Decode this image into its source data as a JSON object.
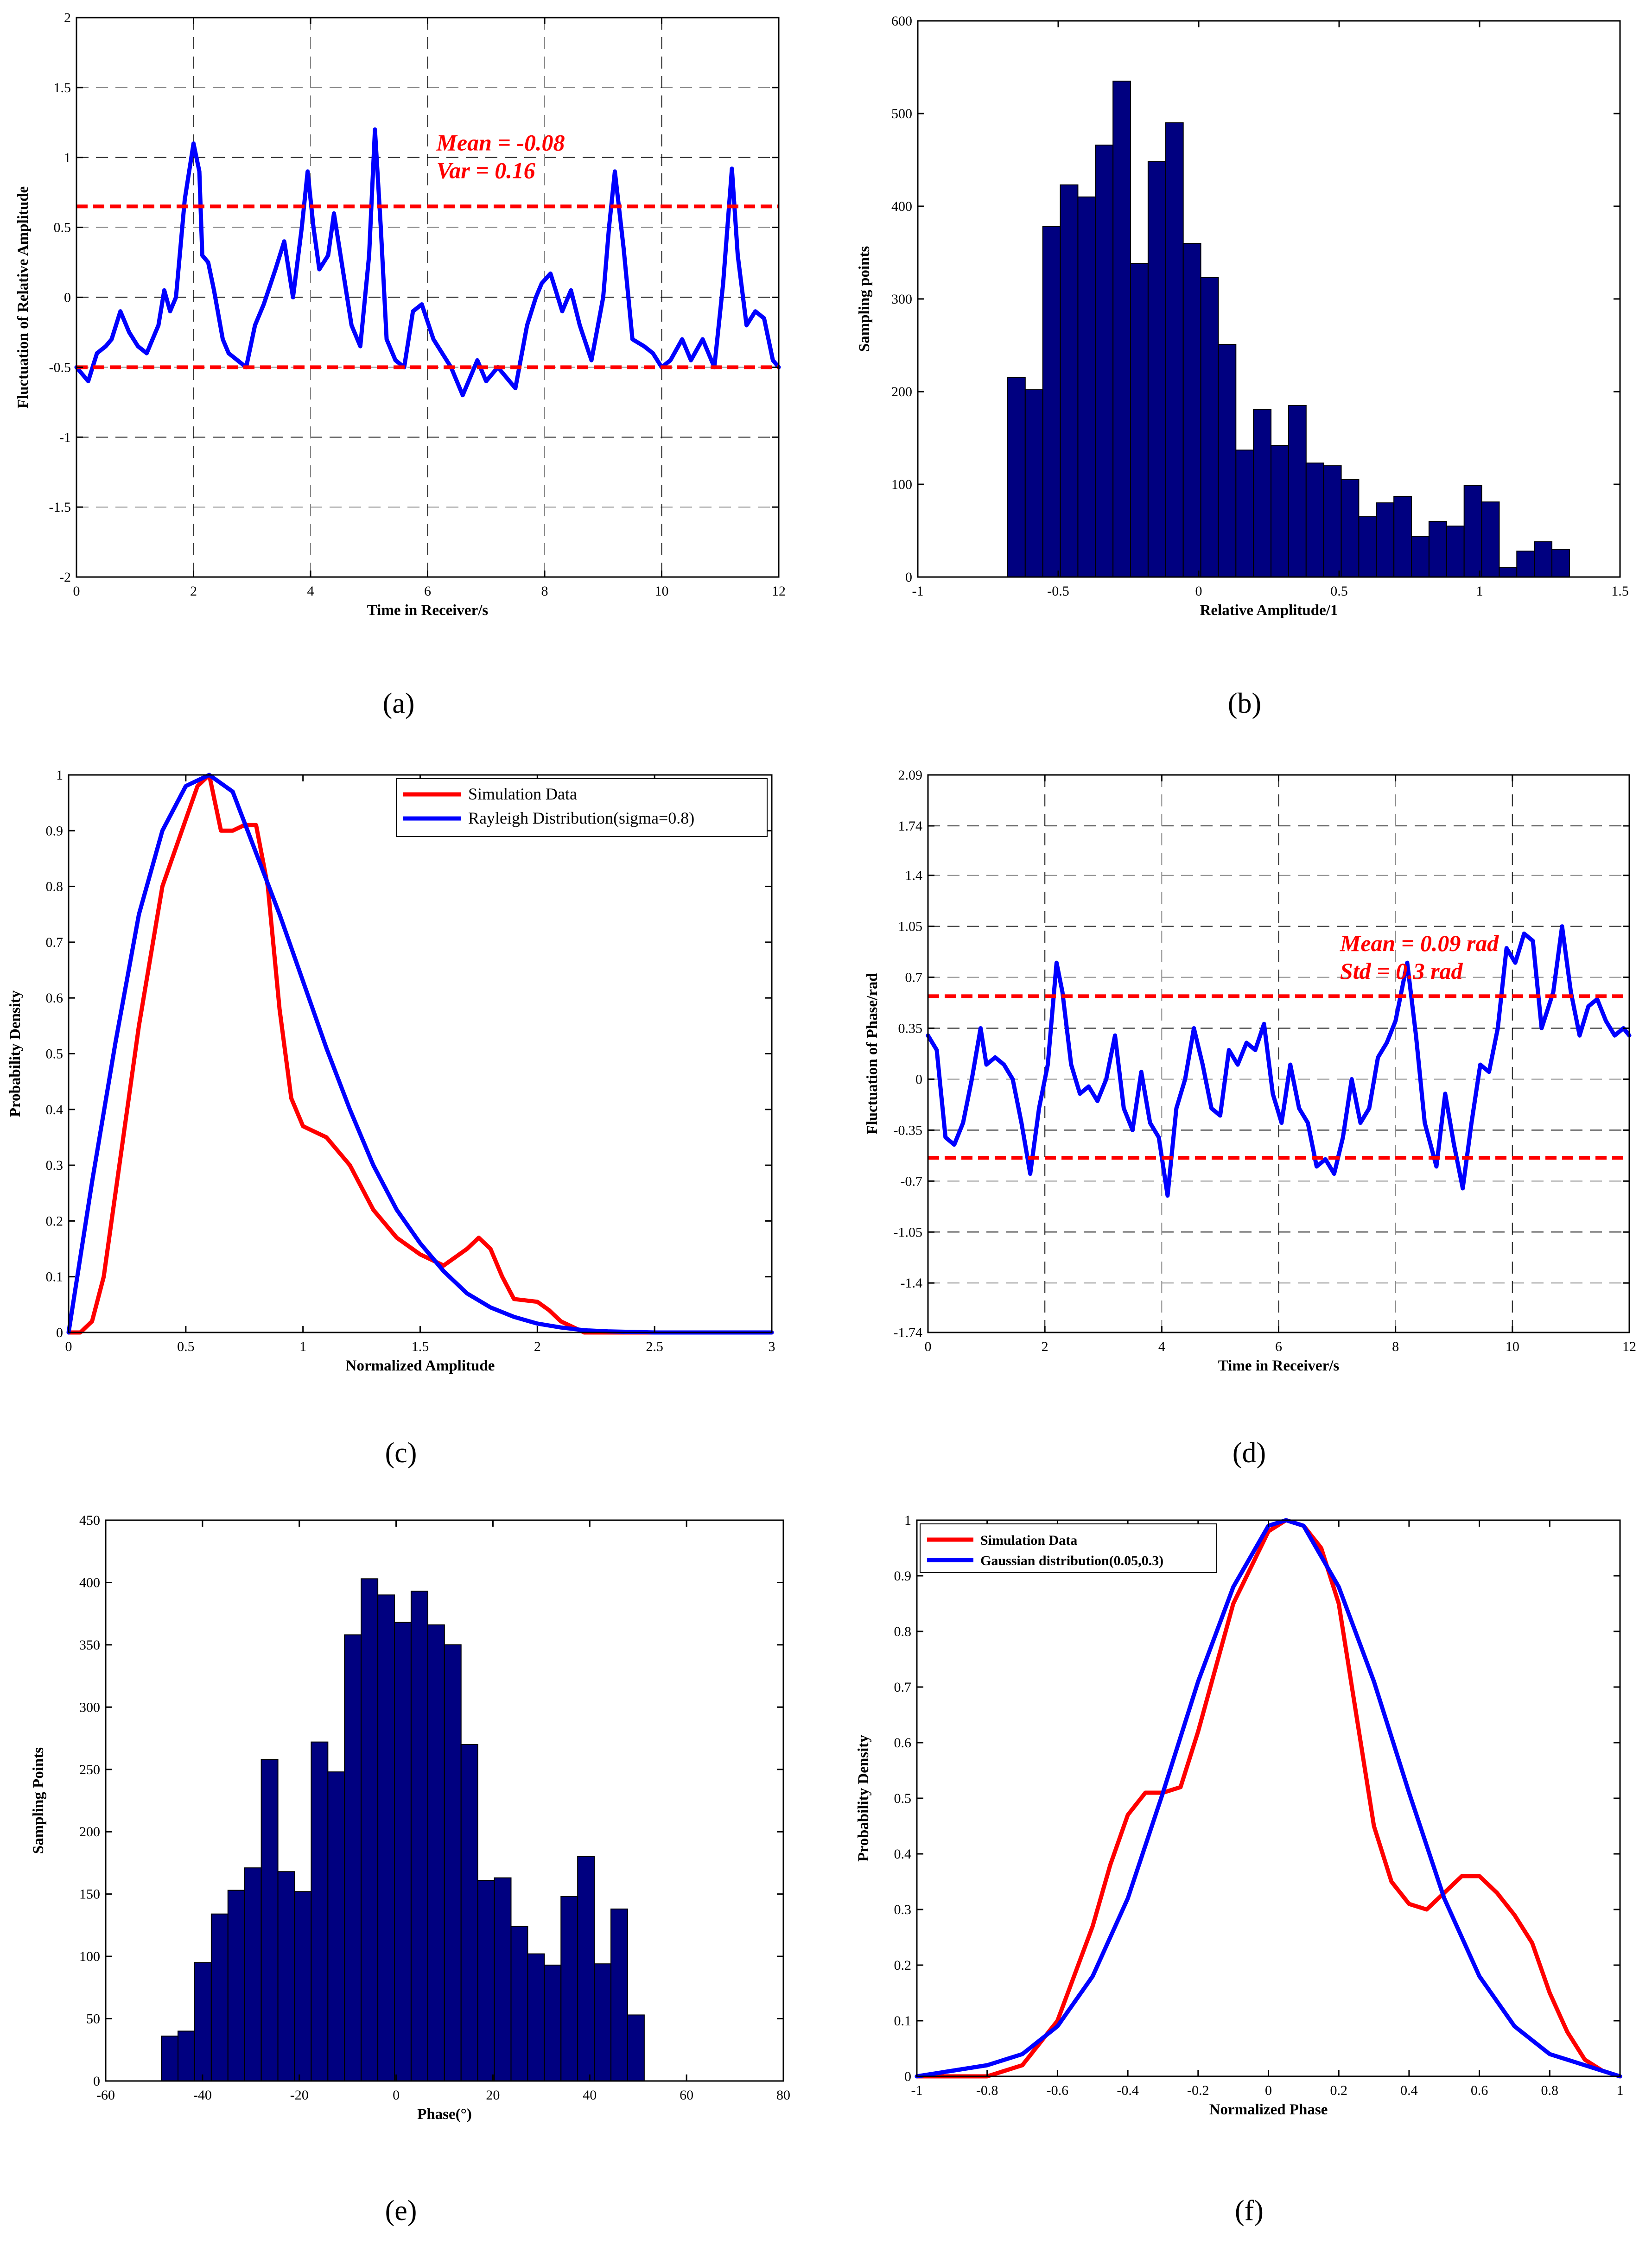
{
  "panel_labels": [
    "(a)",
    "(b)",
    "(c)",
    "(d)",
    "(e)",
    "(f)"
  ],
  "colors": {
    "blue_line": "#0000ff",
    "red_line": "#ff0000",
    "bar_fill": "#000080",
    "bar_edge": "#000000"
  },
  "chart_data": [
    {
      "id": "a",
      "type": "line",
      "title": "",
      "xlabel": "Time in Receiver/s",
      "ylabel": "Fluctuation of Relative Amplitude",
      "xlim": [
        0,
        12
      ],
      "ylim": [
        -2,
        2
      ],
      "xticks": [
        0,
        2,
        4,
        6,
        8,
        10,
        12
      ],
      "yticks": [
        -2,
        -1.5,
        -1,
        -0.5,
        0,
        0.5,
        1,
        1.5,
        2
      ],
      "ytick_labels": [
        "-2",
        "-1.5",
        "-1",
        "-0.5",
        "0",
        "0.5",
        "1",
        "1.5",
        "2"
      ],
      "hlines": [
        0.65,
        -0.5
      ],
      "annotations": [
        "Mean = -0.08",
        "Var = 0.16"
      ],
      "series": [
        {
          "name": "amplitude",
          "color": "#0000ff",
          "x": [
            0,
            0.2,
            0.35,
            0.5,
            0.6,
            0.75,
            0.9,
            1.05,
            1.2,
            1.3,
            1.4,
            1.5,
            1.6,
            1.7,
            1.85,
            2.0,
            2.1,
            2.15,
            2.25,
            2.35,
            2.5,
            2.6,
            2.75,
            2.9,
            3.05,
            3.2,
            3.4,
            3.55,
            3.7,
            3.85,
            3.95,
            4.05,
            4.15,
            4.3,
            4.4,
            4.55,
            4.7,
            4.85,
            5.0,
            5.1,
            5.2,
            5.3,
            5.45,
            5.6,
            5.75,
            5.9,
            6.1,
            6.4,
            6.6,
            6.85,
            7.0,
            7.2,
            7.5,
            7.7,
            7.85,
            7.95,
            8.1,
            8.3,
            8.45,
            8.6,
            8.8,
            9.0,
            9.1,
            9.2,
            9.35,
            9.5,
            9.7,
            9.85,
            10.0,
            10.15,
            10.35,
            10.5,
            10.7,
            10.9,
            11.05,
            11.2,
            11.3,
            11.45,
            11.6,
            11.75,
            11.9,
            12.0
          ],
          "y": [
            -0.5,
            -0.6,
            -0.4,
            -0.35,
            -0.3,
            -0.1,
            -0.25,
            -0.35,
            -0.4,
            -0.3,
            -0.2,
            0.05,
            -0.1,
            0.0,
            0.7,
            1.1,
            0.9,
            0.3,
            0.25,
            0.05,
            -0.3,
            -0.4,
            -0.45,
            -0.5,
            -0.2,
            -0.05,
            0.2,
            0.4,
            0.0,
            0.5,
            0.9,
            0.5,
            0.2,
            0.3,
            0.6,
            0.2,
            -0.2,
            -0.35,
            0.3,
            1.2,
            0.5,
            -0.3,
            -0.45,
            -0.5,
            -0.1,
            -0.05,
            -0.3,
            -0.5,
            -0.7,
            -0.45,
            -0.6,
            -0.5,
            -0.65,
            -0.2,
            0.0,
            0.1,
            0.17,
            -0.1,
            0.05,
            -0.2,
            -0.45,
            0.0,
            0.5,
            0.9,
            0.35,
            -0.3,
            -0.35,
            -0.4,
            -0.5,
            -0.45,
            -0.3,
            -0.45,
            -0.3,
            -0.5,
            0.1,
            0.92,
            0.3,
            -0.2,
            -0.1,
            -0.15,
            -0.45,
            -0.5
          ]
        }
      ]
    },
    {
      "id": "b",
      "type": "bar",
      "title": "",
      "xlabel": "Relative Amplitude/1",
      "ylabel": "Sampling points",
      "xlim": [
        -1,
        1.5
      ],
      "ylim": [
        0,
        600
      ],
      "xticks": [
        -1,
        -0.5,
        0,
        0.5,
        1,
        1.5
      ],
      "xtick_labels": [
        "-1",
        "-0.5",
        "0",
        "0.5",
        "1",
        "1.5"
      ],
      "yticks": [
        0,
        100,
        200,
        300,
        400,
        500,
        600
      ],
      "bin_start": -0.68,
      "bin_width": 0.0625,
      "values": [
        215,
        202,
        378,
        423,
        410,
        466,
        535,
        338,
        448,
        490,
        360,
        323,
        251,
        137,
        181,
        142,
        185,
        123,
        120,
        105,
        65,
        80,
        87,
        44,
        60,
        55,
        99,
        81,
        10,
        28,
        38,
        30
      ]
    },
    {
      "id": "c",
      "type": "line",
      "title": "",
      "xlabel": "Normalized Amplitude",
      "ylabel": "Probability Density",
      "xlim": [
        0,
        3
      ],
      "ylim": [
        0,
        1
      ],
      "xticks": [
        0,
        0.5,
        1,
        1.5,
        2,
        2.5,
        3
      ],
      "xtick_labels": [
        "0",
        "0.5",
        "1",
        "1.5",
        "2",
        "2.5",
        "3"
      ],
      "yticks": [
        0,
        0.1,
        0.2,
        0.3,
        0.4,
        0.5,
        0.6,
        0.7,
        0.8,
        0.9,
        1
      ],
      "ytick_labels": [
        "0",
        "0.1",
        "0.2",
        "0.3",
        "0.4",
        "0.5",
        "0.6",
        "0.7",
        "0.8",
        "0.9",
        "1"
      ],
      "legend": [
        "Simulation Data",
        "Rayleigh Distribution(sigma=0.8)"
      ],
      "series": [
        {
          "name": "Simulation Data",
          "color": "#ff0000",
          "x": [
            0,
            0.05,
            0.1,
            0.15,
            0.2,
            0.3,
            0.4,
            0.5,
            0.55,
            0.6,
            0.65,
            0.7,
            0.75,
            0.8,
            0.85,
            0.9,
            0.95,
            1.0,
            1.05,
            1.1,
            1.2,
            1.3,
            1.4,
            1.5,
            1.6,
            1.7,
            1.75,
            1.8,
            1.85,
            1.9,
            2.0,
            2.05,
            2.1,
            2.2,
            2.5,
            3.0
          ],
          "y": [
            0.0,
            0.0,
            0.02,
            0.1,
            0.25,
            0.55,
            0.8,
            0.92,
            0.98,
            1.0,
            0.9,
            0.9,
            0.91,
            0.91,
            0.8,
            0.58,
            0.42,
            0.37,
            0.36,
            0.35,
            0.3,
            0.22,
            0.17,
            0.14,
            0.12,
            0.15,
            0.17,
            0.15,
            0.1,
            0.06,
            0.055,
            0.04,
            0.02,
            0.0,
            0.0,
            0.0
          ]
        },
        {
          "name": "Rayleigh Distribution(sigma=0.8)",
          "color": "#0000ff",
          "x": [
            0,
            0.1,
            0.2,
            0.3,
            0.4,
            0.5,
            0.6,
            0.7,
            0.8,
            0.9,
            1.0,
            1.1,
            1.2,
            1.3,
            1.4,
            1.5,
            1.6,
            1.7,
            1.8,
            1.9,
            2.0,
            2.1,
            2.2,
            2.3,
            2.5,
            3.0
          ],
          "y": [
            0.0,
            0.27,
            0.52,
            0.75,
            0.9,
            0.98,
            1.0,
            0.97,
            0.86,
            0.75,
            0.63,
            0.51,
            0.4,
            0.3,
            0.22,
            0.16,
            0.11,
            0.07,
            0.045,
            0.028,
            0.016,
            0.009,
            0.004,
            0.002,
            0.0,
            0.0
          ]
        }
      ]
    },
    {
      "id": "d",
      "type": "line",
      "title": "",
      "xlabel": "Time in Receiver/s",
      "ylabel": "Fluctuation of Phase/rad",
      "xlim": [
        0,
        12
      ],
      "ylim": [
        -1.74,
        2.09
      ],
      "xticks": [
        0,
        2,
        4,
        6,
        8,
        10,
        12
      ],
      "yticks": [
        -1.74,
        -1.4,
        -1.05,
        -0.7,
        -0.35,
        0,
        0.35,
        0.7,
        1.05,
        1.4,
        1.74,
        2.09
      ],
      "ytick_labels": [
        "-1.74",
        "-1.4",
        "-1.05",
        "-0.7",
        "-0.35",
        "0",
        "0.35",
        "0.7",
        "1.05",
        "1.4",
        "1.74",
        "2.09"
      ],
      "hlines": [
        0.57,
        -0.54
      ],
      "annotations": [
        "Mean = 0.09 rad",
        "Std = 0.3 rad"
      ],
      "series": [
        {
          "name": "phase",
          "color": "#0000ff",
          "x": [
            0,
            0.15,
            0.3,
            0.45,
            0.6,
            0.75,
            0.9,
            1.0,
            1.15,
            1.3,
            1.45,
            1.6,
            1.75,
            1.9,
            2.05,
            2.2,
            2.3,
            2.45,
            2.6,
            2.75,
            2.9,
            3.05,
            3.2,
            3.35,
            3.5,
            3.65,
            3.8,
            3.95,
            4.1,
            4.25,
            4.4,
            4.55,
            4.7,
            4.85,
            5.0,
            5.15,
            5.3,
            5.45,
            5.6,
            5.75,
            5.9,
            6.05,
            6.2,
            6.35,
            6.5,
            6.65,
            6.8,
            6.95,
            7.1,
            7.25,
            7.4,
            7.55,
            7.7,
            7.85,
            8.0,
            8.2,
            8.35,
            8.5,
            8.7,
            8.85,
            9.0,
            9.15,
            9.3,
            9.45,
            9.6,
            9.75,
            9.9,
            10.05,
            10.2,
            10.35,
            10.5,
            10.7,
            10.85,
            11.0,
            11.15,
            11.3,
            11.45,
            11.6,
            11.75,
            11.9,
            12.0
          ],
          "y": [
            0.3,
            0.2,
            -0.4,
            -0.45,
            -0.3,
            0.0,
            0.35,
            0.1,
            0.15,
            0.1,
            0.0,
            -0.3,
            -0.65,
            -0.2,
            0.1,
            0.8,
            0.6,
            0.1,
            -0.1,
            -0.05,
            -0.15,
            0.0,
            0.3,
            -0.2,
            -0.35,
            0.05,
            -0.3,
            -0.4,
            -0.8,
            -0.2,
            0.0,
            0.35,
            0.1,
            -0.2,
            -0.25,
            0.2,
            0.1,
            0.25,
            0.2,
            0.38,
            -0.1,
            -0.3,
            0.1,
            -0.2,
            -0.3,
            -0.6,
            -0.55,
            -0.65,
            -0.4,
            0.0,
            -0.3,
            -0.2,
            0.15,
            0.25,
            0.4,
            0.8,
            0.3,
            -0.3,
            -0.6,
            -0.1,
            -0.45,
            -0.75,
            -0.3,
            0.1,
            0.05,
            0.35,
            0.9,
            0.8,
            1.0,
            0.95,
            0.35,
            0.6,
            1.05,
            0.6,
            0.3,
            0.5,
            0.55,
            0.4,
            0.3,
            0.35,
            0.3
          ]
        }
      ]
    },
    {
      "id": "e",
      "type": "bar",
      "title": "",
      "xlabel": "Phase(°)",
      "ylabel": "Sampling Points",
      "xlim": [
        -60,
        80
      ],
      "ylim": [
        0,
        450
      ],
      "xticks": [
        -60,
        -40,
        -20,
        0,
        20,
        40,
        60,
        80
      ],
      "yticks": [
        0,
        50,
        100,
        150,
        200,
        250,
        300,
        350,
        400,
        450
      ],
      "bin_start": -48.5,
      "bin_width": 3.44,
      "values": [
        36,
        40,
        95,
        134,
        153,
        171,
        258,
        168,
        152,
        272,
        248,
        358,
        403,
        390,
        368,
        393,
        366,
        350,
        270,
        161,
        163,
        124,
        102,
        93,
        148,
        180,
        94,
        138,
        53
      ]
    },
    {
      "id": "f",
      "type": "line",
      "title": "",
      "xlabel": "Normalized Phase",
      "ylabel": "Probability Density",
      "xlim": [
        -1,
        1
      ],
      "ylim": [
        0,
        1
      ],
      "xticks": [
        -1,
        -0.8,
        -0.6,
        -0.4,
        -0.2,
        0,
        0.2,
        0.4,
        0.6,
        0.8,
        1
      ],
      "xtick_labels": [
        "-1",
        "-0.8",
        "-0.6",
        "-0.4",
        "-0.2",
        "0",
        "0.2",
        "0.4",
        "0.6",
        "0.8",
        "1"
      ],
      "yticks": [
        0,
        0.1,
        0.2,
        0.3,
        0.4,
        0.5,
        0.6,
        0.7,
        0.8,
        0.9,
        1
      ],
      "ytick_labels": [
        "0",
        "0.1",
        "0.2",
        "0.3",
        "0.4",
        "0.5",
        "0.6",
        "0.7",
        "0.8",
        "0.9",
        "1"
      ],
      "legend": [
        "Simulation Data",
        "Gaussian distribution(0.05,0.3)"
      ],
      "series": [
        {
          "name": "Simulation Data",
          "color": "#ff0000",
          "x": [
            -1,
            -0.8,
            -0.7,
            -0.6,
            -0.5,
            -0.45,
            -0.4,
            -0.35,
            -0.3,
            -0.25,
            -0.2,
            -0.1,
            0.0,
            0.05,
            0.1,
            0.15,
            0.2,
            0.25,
            0.3,
            0.35,
            0.4,
            0.45,
            0.5,
            0.55,
            0.6,
            0.65,
            0.7,
            0.75,
            0.8,
            0.85,
            0.9,
            0.95,
            1.0
          ],
          "y": [
            0.0,
            0.0,
            0.02,
            0.1,
            0.27,
            0.38,
            0.47,
            0.51,
            0.51,
            0.52,
            0.62,
            0.85,
            0.98,
            1.0,
            0.99,
            0.95,
            0.85,
            0.65,
            0.45,
            0.35,
            0.31,
            0.3,
            0.33,
            0.36,
            0.36,
            0.33,
            0.29,
            0.24,
            0.15,
            0.08,
            0.03,
            0.01,
            0.0
          ]
        },
        {
          "name": "Gaussian distribution(0.05,0.3)",
          "color": "#0000ff",
          "x": [
            -1,
            -0.9,
            -0.8,
            -0.7,
            -0.6,
            -0.5,
            -0.4,
            -0.3,
            -0.2,
            -0.1,
            0.0,
            0.05,
            0.1,
            0.2,
            0.3,
            0.4,
            0.5,
            0.6,
            0.7,
            0.8,
            0.9,
            1.0
          ],
          "y": [
            0.0,
            0.01,
            0.02,
            0.04,
            0.09,
            0.18,
            0.32,
            0.51,
            0.71,
            0.88,
            0.99,
            1.0,
            0.99,
            0.88,
            0.71,
            0.51,
            0.32,
            0.18,
            0.09,
            0.04,
            0.02,
            0.0
          ]
        }
      ]
    }
  ]
}
